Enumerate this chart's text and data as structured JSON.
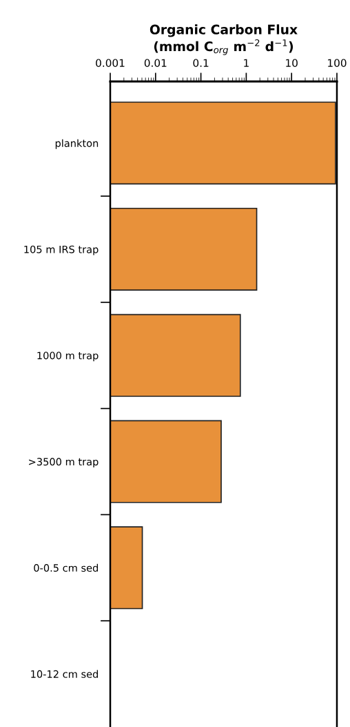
{
  "chart_data": {
    "type": "bar",
    "orientation": "horizontal",
    "log": "x",
    "xlabel": "Organic Carbon Flux\n(mmol C$_{org}$ m$^{−2}$ d$^{−1}$)",
    "categories": [
      "plankton",
      "105 m IRS trap",
      "1000 m trap",
      ">3500 m trap",
      "0-0.5 cm sed",
      "10-12 cm sed"
    ],
    "values": [
      93,
      1.7,
      0.74,
      0.28,
      0.0051,
      null
    ],
    "color": "#e8913a",
    "xlim": [
      0.001,
      100
    ],
    "xticks": [
      0.001,
      0.01,
      0.1,
      1,
      10,
      100
    ],
    "grid": false
  }
}
